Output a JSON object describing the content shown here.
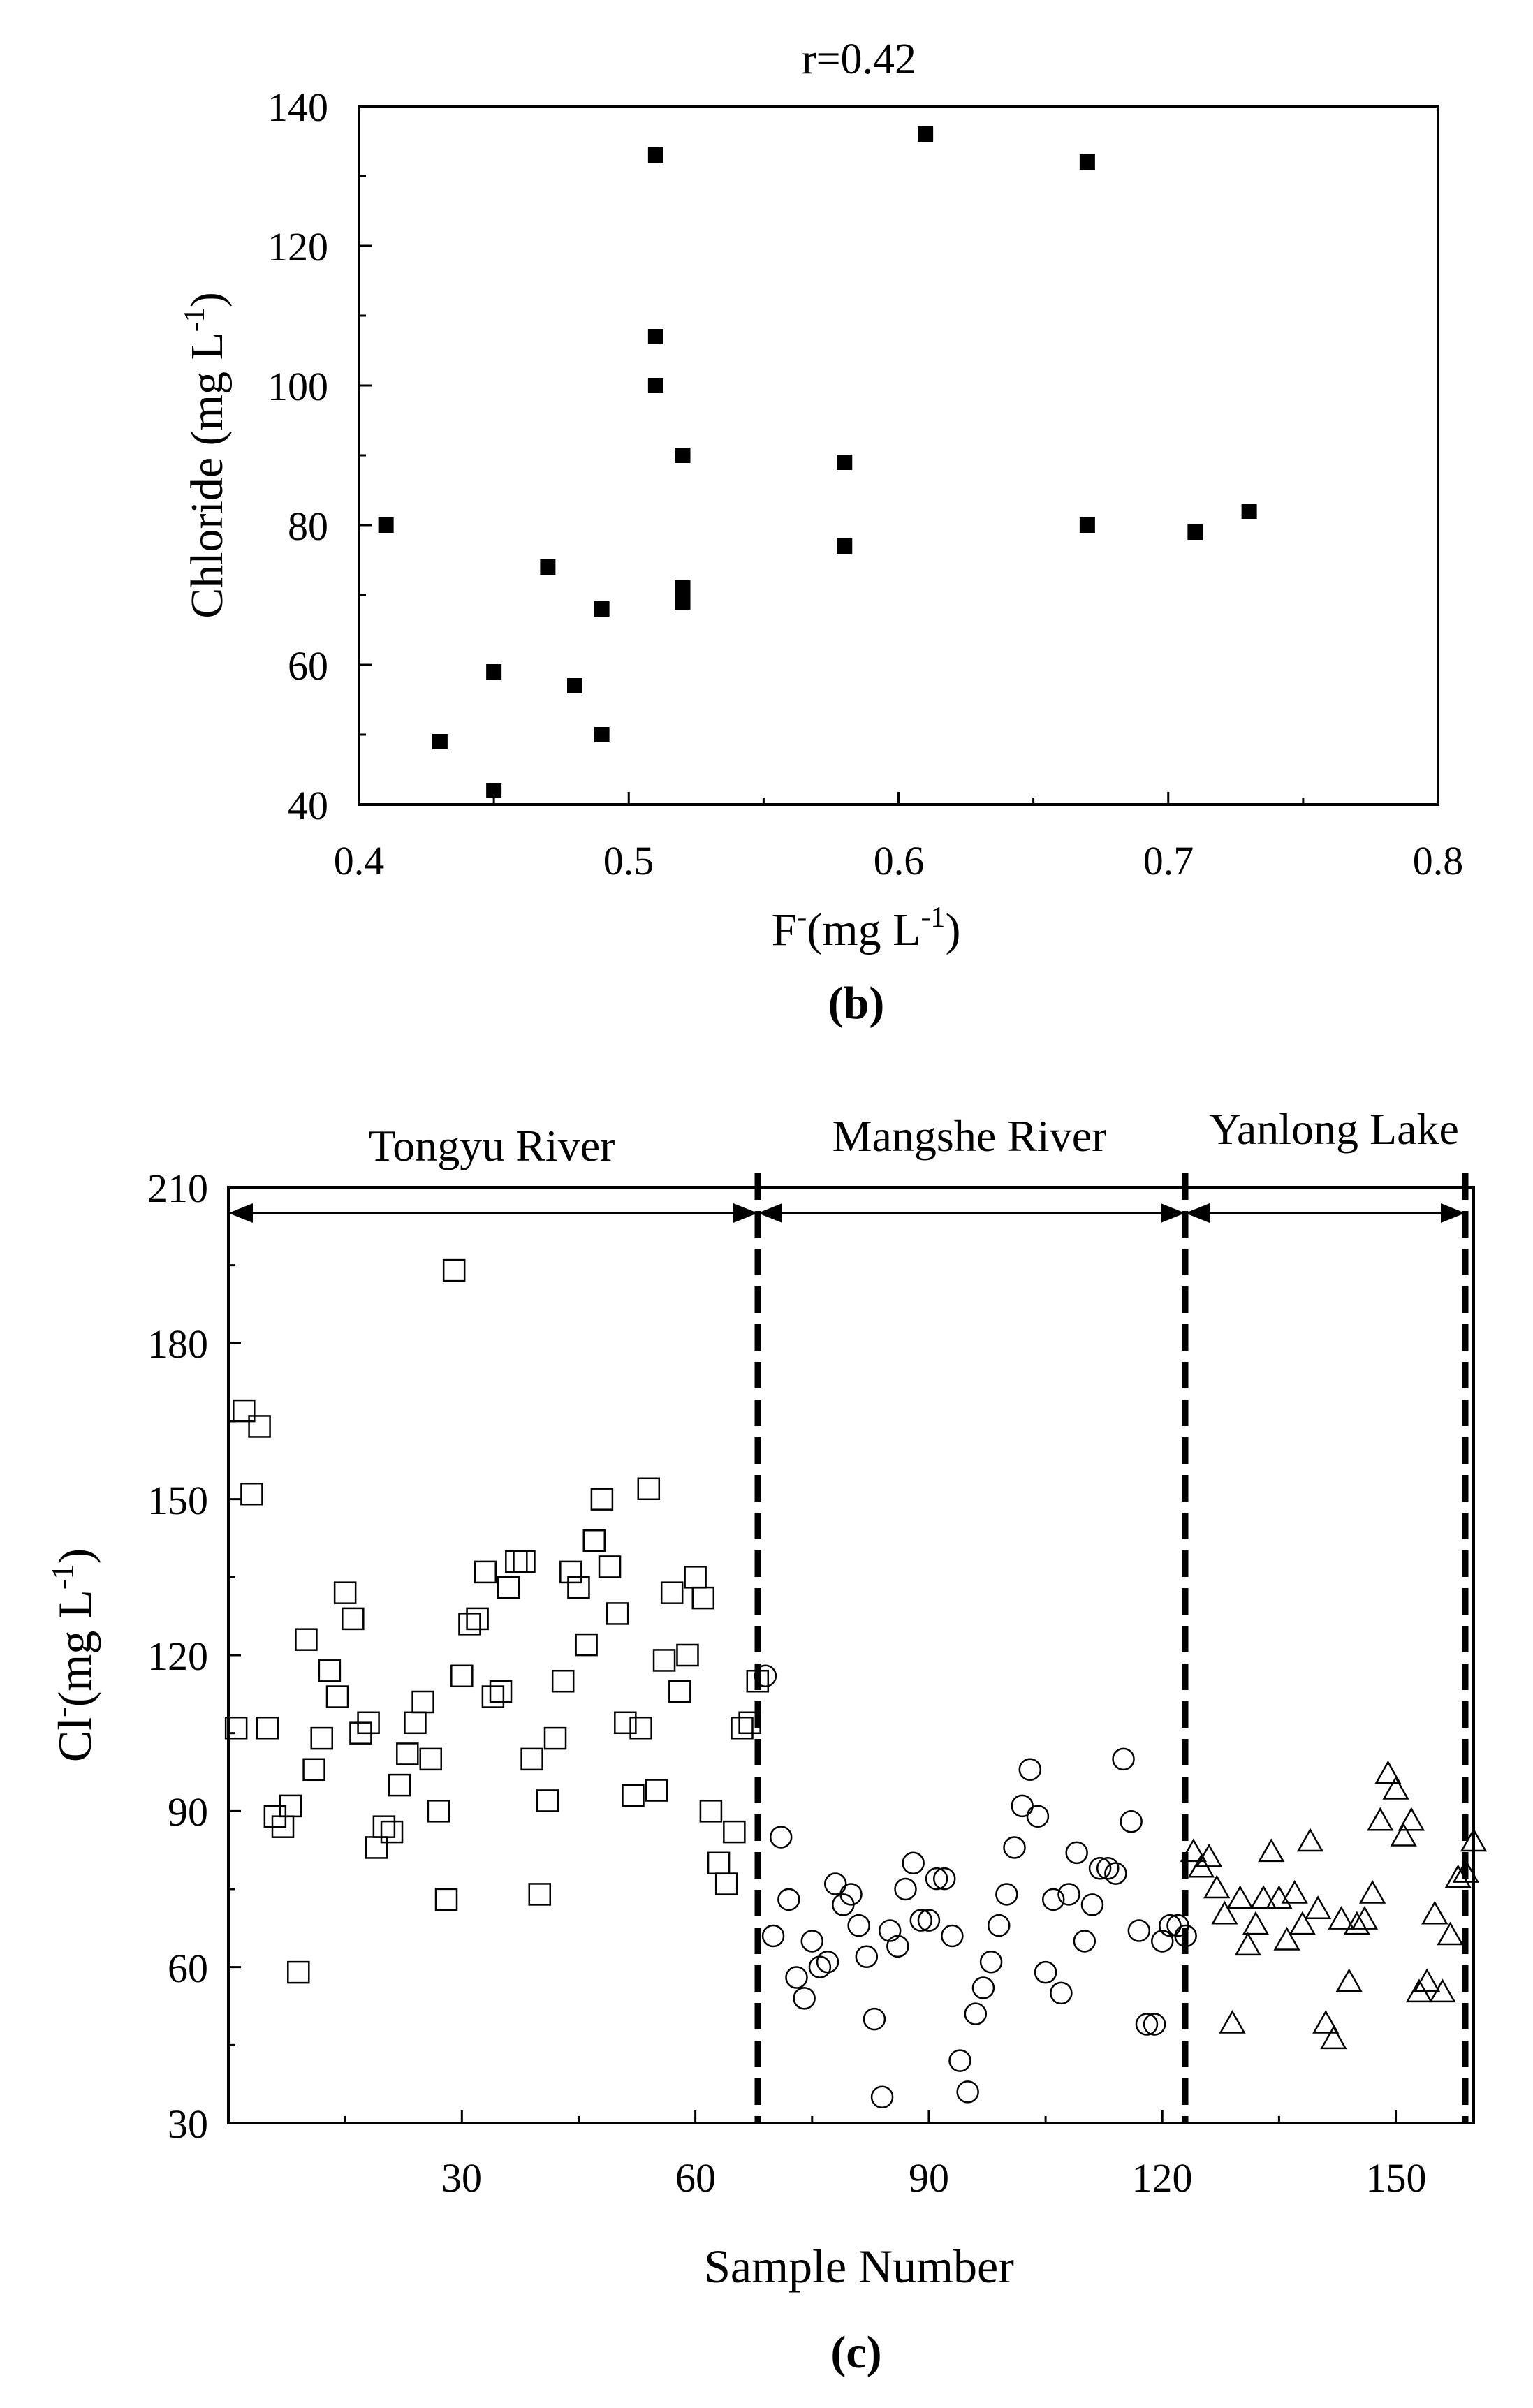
{
  "chart_data": [
    {
      "panel": "b",
      "type": "scatter",
      "title": "r=0.42",
      "xlabel": "F",
      "xlabel_sup": "-",
      "xlabel_unit": "(mg L",
      "xlabel_unit_sup": "-1",
      "xlabel_close": ")",
      "ylabel": "Chloride (mg L",
      "ylabel_sup": "-1",
      "ylabel_close": ")",
      "panel_label": "(b)",
      "xlim": [
        0.4,
        0.8
      ],
      "ylim": [
        40,
        140
      ],
      "xticks": [
        "0.4",
        "0.5",
        "0.6",
        "0.7",
        "0.8"
      ],
      "yticks": [
        "40",
        "60",
        "80",
        "100",
        "120",
        "140"
      ],
      "marker": "filled-square",
      "series": [
        {
          "name": "samples",
          "points": [
            [
              0.41,
              80
            ],
            [
              0.43,
              49
            ],
            [
              0.45,
              59
            ],
            [
              0.45,
              42
            ],
            [
              0.47,
              74
            ],
            [
              0.48,
              57
            ],
            [
              0.49,
              68
            ],
            [
              0.49,
              50
            ],
            [
              0.51,
              133
            ],
            [
              0.51,
              107
            ],
            [
              0.51,
              100
            ],
            [
              0.52,
              90
            ],
            [
              0.52,
              71
            ],
            [
              0.52,
              69
            ],
            [
              0.58,
              89
            ],
            [
              0.58,
              77
            ],
            [
              0.61,
              136
            ],
            [
              0.67,
              132
            ],
            [
              0.67,
              80
            ],
            [
              0.71,
              79
            ],
            [
              0.73,
              82
            ]
          ]
        }
      ]
    },
    {
      "panel": "c",
      "type": "scatter",
      "xlabel": "Sample Number",
      "ylabel": "Cl",
      "ylabel_sup": "-",
      "ylabel_unit": "(mg L",
      "ylabel_unit_sup": "-1",
      "ylabel_close": ")",
      "panel_label": "(c)",
      "xlim": [
        0,
        160
      ],
      "ylim": [
        30,
        210
      ],
      "xticks": [
        "30",
        "60",
        "90",
        "120",
        "150"
      ],
      "yticks": [
        "30",
        "60",
        "90",
        "120",
        "150",
        "180",
        "210"
      ],
      "regions": [
        {
          "name": "Tongyu River",
          "from": 0,
          "to": 68
        },
        {
          "name": "Mangshe River",
          "from": 68,
          "to": 123
        },
        {
          "name": "Yanlong Lake",
          "from": 123,
          "to": 159
        }
      ],
      "series": [
        {
          "name": "Tongyu River",
          "marker": "open-square",
          "points": [
            [
              1,
              106
            ],
            [
              2,
              167
            ],
            [
              3,
              151
            ],
            [
              4,
              164
            ],
            [
              5,
              106
            ],
            [
              6,
              89
            ],
            [
              7,
              87
            ],
            [
              8,
              91
            ],
            [
              9,
              59
            ],
            [
              10,
              123
            ],
            [
              11,
              98
            ],
            [
              12,
              104
            ],
            [
              13,
              117
            ],
            [
              14,
              112
            ],
            [
              15,
              132
            ],
            [
              16,
              127
            ],
            [
              17,
              105
            ],
            [
              18,
              107
            ],
            [
              19,
              83
            ],
            [
              20,
              87
            ],
            [
              21,
              86
            ],
            [
              22,
              95
            ],
            [
              23,
              101
            ],
            [
              24,
              107
            ],
            [
              25,
              111
            ],
            [
              26,
              100
            ],
            [
              27,
              90
            ],
            [
              28,
              73
            ],
            [
              29,
              194
            ],
            [
              30,
              116
            ],
            [
              31,
              126
            ],
            [
              32,
              127
            ],
            [
              33,
              136
            ],
            [
              34,
              112
            ],
            [
              35,
              113
            ],
            [
              36,
              133
            ],
            [
              37,
              138
            ],
            [
              38,
              138
            ],
            [
              39,
              100
            ],
            [
              40,
              74
            ],
            [
              41,
              92
            ],
            [
              42,
              104
            ],
            [
              43,
              115
            ],
            [
              44,
              136
            ],
            [
              45,
              133
            ],
            [
              46,
              122
            ],
            [
              47,
              142
            ],
            [
              48,
              150
            ],
            [
              49,
              137
            ],
            [
              50,
              128
            ],
            [
              51,
              107
            ],
            [
              52,
              93
            ],
            [
              53,
              106
            ],
            [
              54,
              152
            ],
            [
              55,
              94
            ],
            [
              56,
              119
            ],
            [
              57,
              132
            ],
            [
              58,
              113
            ],
            [
              59,
              120
            ],
            [
              60,
              135
            ],
            [
              61,
              131
            ],
            [
              62,
              90
            ],
            [
              63,
              80
            ],
            [
              64,
              76
            ],
            [
              65,
              86
            ],
            [
              66,
              106
            ],
            [
              67,
              107
            ],
            [
              68,
              115
            ]
          ]
        },
        {
          "name": "Mangshe River",
          "marker": "open-circle",
          "points": [
            [
              69,
              116
            ],
            [
              70,
              66
            ],
            [
              71,
              85
            ],
            [
              72,
              73
            ],
            [
              73,
              58
            ],
            [
              74,
              54
            ],
            [
              75,
              65
            ],
            [
              76,
              60
            ],
            [
              77,
              61
            ],
            [
              78,
              76
            ],
            [
              79,
              72
            ],
            [
              80,
              74
            ],
            [
              81,
              68
            ],
            [
              82,
              62
            ],
            [
              83,
              50
            ],
            [
              84,
              35
            ],
            [
              85,
              67
            ],
            [
              86,
              64
            ],
            [
              87,
              75
            ],
            [
              88,
              80
            ],
            [
              89,
              69
            ],
            [
              90,
              69
            ],
            [
              91,
              77
            ],
            [
              92,
              77
            ],
            [
              93,
              66
            ],
            [
              94,
              42
            ],
            [
              95,
              36
            ],
            [
              96,
              51
            ],
            [
              97,
              56
            ],
            [
              98,
              61
            ],
            [
              99,
              68
            ],
            [
              100,
              74
            ],
            [
              101,
              83
            ],
            [
              102,
              91
            ],
            [
              103,
              98
            ],
            [
              104,
              89
            ],
            [
              105,
              59
            ],
            [
              106,
              73
            ],
            [
              107,
              55
            ],
            [
              108,
              74
            ],
            [
              109,
              82
            ],
            [
              110,
              65
            ],
            [
              111,
              72
            ],
            [
              112,
              79
            ],
            [
              113,
              79
            ],
            [
              114,
              78
            ],
            [
              115,
              100
            ],
            [
              116,
              88
            ],
            [
              117,
              67
            ],
            [
              118,
              49
            ],
            [
              119,
              49
            ],
            [
              120,
              65
            ],
            [
              121,
              68
            ],
            [
              122,
              68
            ],
            [
              123,
              66
            ]
          ]
        },
        {
          "name": "Yanlong Lake",
          "marker": "open-triangle",
          "points": [
            [
              124,
              82
            ],
            [
              125,
              79
            ],
            [
              126,
              81
            ],
            [
              127,
              75
            ],
            [
              128,
              70
            ],
            [
              129,
              49
            ],
            [
              130,
              73
            ],
            [
              131,
              64
            ],
            [
              132,
              68
            ],
            [
              133,
              73
            ],
            [
              134,
              82
            ],
            [
              135,
              73
            ],
            [
              136,
              65
            ],
            [
              137,
              74
            ],
            [
              138,
              68
            ],
            [
              139,
              84
            ],
            [
              140,
              71
            ],
            [
              141,
              49
            ],
            [
              142,
              46
            ],
            [
              143,
              69
            ],
            [
              144,
              57
            ],
            [
              145,
              68
            ],
            [
              146,
              69
            ],
            [
              147,
              74
            ],
            [
              148,
              88
            ],
            [
              149,
              97
            ],
            [
              150,
              94
            ],
            [
              151,
              85
            ],
            [
              152,
              88
            ],
            [
              153,
              55
            ],
            [
              154,
              57
            ],
            [
              155,
              70
            ],
            [
              156,
              55
            ],
            [
              157,
              66
            ],
            [
              158,
              77
            ],
            [
              159,
              78
            ],
            [
              160,
              84
            ]
          ]
        }
      ]
    }
  ]
}
